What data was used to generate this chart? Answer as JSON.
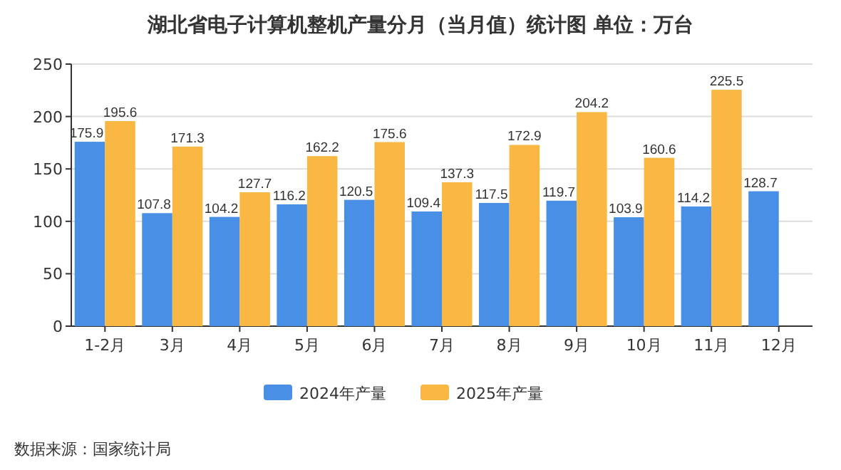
{
  "chart_data": {
    "type": "bar",
    "title": "湖北省电子计算机整机产量分月（当月值）统计图 单位：万台",
    "categories": [
      "1-2月",
      "3月",
      "4月",
      "5月",
      "6月",
      "7月",
      "8月",
      "9月",
      "10月",
      "11月",
      "12月"
    ],
    "series": [
      {
        "name": "2024年产量",
        "color": "#4a8fe6",
        "values": [
          175.9,
          107.8,
          104.2,
          116.2,
          120.5,
          109.4,
          117.5,
          119.7,
          103.9,
          114.2,
          128.7
        ]
      },
      {
        "name": "2025年产量",
        "color": "#f8b843",
        "values": [
          195.6,
          171.3,
          127.7,
          162.2,
          175.6,
          137.3,
          172.9,
          204.2,
          160.6,
          225.5,
          null
        ]
      }
    ],
    "ylim": [
      0,
      250
    ],
    "yticks": [
      0,
      50,
      100,
      150,
      200,
      250
    ],
    "grid": "y",
    "legend": "bottom",
    "data_labels": true,
    "annotations": [
      "数据来源：国家统计局"
    ]
  }
}
